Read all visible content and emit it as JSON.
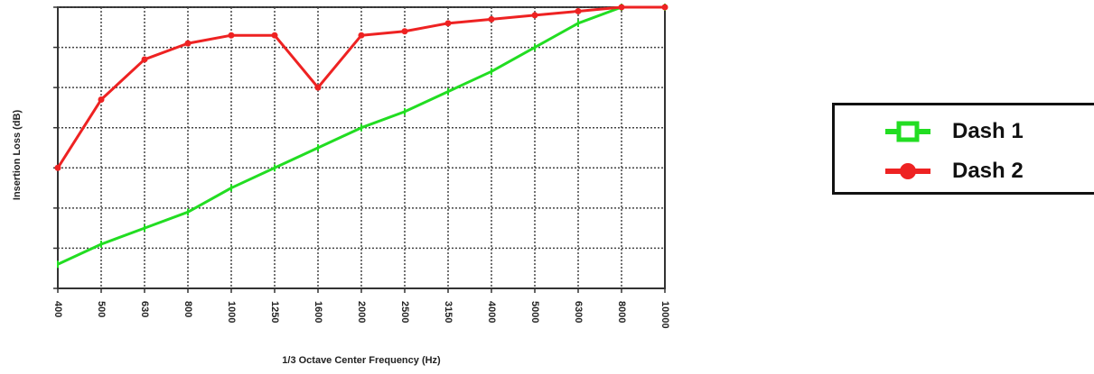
{
  "chart_data": {
    "type": "line",
    "title": "",
    "xlabel": "1/3 Octave Center Frequency (Hz)",
    "ylabel": "Insertion Loss (dB)",
    "categories": [
      "400",
      "500",
      "630",
      "800",
      "1000",
      "1250",
      "1600",
      "2000",
      "2500",
      "3150",
      "4000",
      "5000",
      "6300",
      "8000",
      "10000"
    ],
    "ylim": [
      0,
      7
    ],
    "y_ticks_shown": false,
    "grid": true,
    "legend_position": "right",
    "series": [
      {
        "name": "Dash 1",
        "color": "#22dd22",
        "marker": "square",
        "values": [
          0.6,
          1.1,
          1.5,
          1.9,
          2.5,
          3.0,
          3.5,
          4.0,
          4.4,
          4.9,
          5.4,
          6.0,
          6.6,
          7.0,
          7.0
        ]
      },
      {
        "name": "Dash 2",
        "color": "#ee2222",
        "marker": "circle",
        "values": [
          3.0,
          4.7,
          5.7,
          6.1,
          6.3,
          6.3,
          5.0,
          6.3,
          6.4,
          6.6,
          6.7,
          6.8,
          6.9,
          7.0,
          7.0
        ]
      }
    ]
  }
}
